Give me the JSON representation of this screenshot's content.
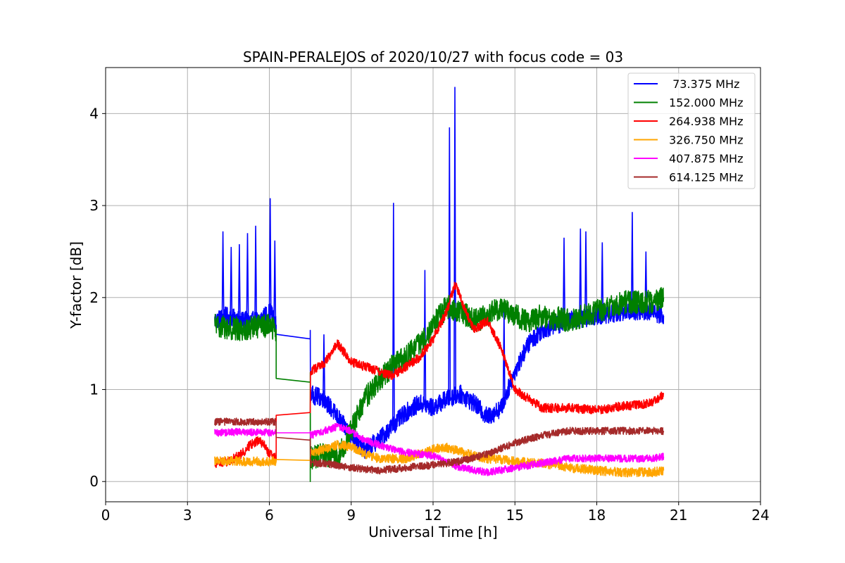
{
  "chart_data": {
    "type": "line",
    "title": "SPAIN-PERALEJOS of 2020/10/27 with focus code = 03",
    "xlabel": "Universal Time [h]",
    "ylabel": "Y-factor [dB]",
    "xlim": [
      0,
      24
    ],
    "ylim": [
      -0.22,
      4.5
    ],
    "xticks": [
      0,
      3,
      6,
      9,
      12,
      15,
      18,
      21,
      24
    ],
    "xtick_labels": [
      "0",
      "3",
      "6",
      "9",
      "12",
      "15",
      "18",
      "21",
      "24"
    ],
    "yticks": [
      0,
      1,
      2,
      3,
      4
    ],
    "ytick_labels": [
      "0",
      "1",
      "2",
      "3",
      "4"
    ],
    "grid": true,
    "legend_position": "top-right",
    "series": [
      {
        "name": " 73.375 MHz",
        "color": "#0000ff",
        "noise": 0.1,
        "points": [
          [
            4.0,
            1.75
          ],
          [
            4.4,
            1.8
          ],
          [
            5.0,
            1.75
          ],
          [
            5.6,
            1.75
          ],
          [
            6.05,
            1.85
          ],
          [
            6.25,
            1.7
          ],
          [
            6.25,
            1.6
          ],
          [
            7.5,
            1.55
          ],
          [
            7.5,
            0.95
          ],
          [
            8.0,
            0.9
          ],
          [
            8.5,
            0.7
          ],
          [
            9.0,
            0.5
          ],
          [
            9.5,
            0.35
          ],
          [
            10.0,
            0.45
          ],
          [
            10.5,
            0.6
          ],
          [
            11.0,
            0.75
          ],
          [
            11.5,
            0.85
          ],
          [
            12.0,
            0.8
          ],
          [
            12.5,
            0.9
          ],
          [
            13.0,
            0.95
          ],
          [
            13.5,
            0.85
          ],
          [
            14.0,
            0.7
          ],
          [
            14.5,
            0.8
          ],
          [
            15.0,
            1.2
          ],
          [
            15.5,
            1.5
          ],
          [
            16.0,
            1.65
          ],
          [
            17.0,
            1.75
          ],
          [
            18.0,
            1.8
          ],
          [
            19.0,
            1.85
          ],
          [
            20.0,
            1.85
          ],
          [
            20.45,
            1.8
          ]
        ],
        "spikes": [
          [
            4.3,
            2.72
          ],
          [
            4.6,
            2.55
          ],
          [
            4.9,
            2.58
          ],
          [
            5.2,
            2.7
          ],
          [
            5.5,
            2.78
          ],
          [
            6.03,
            3.08
          ],
          [
            6.2,
            2.62
          ],
          [
            8.0,
            1.6
          ],
          [
            10.55,
            3.03
          ],
          [
            11.7,
            2.3
          ],
          [
            12.6,
            3.85
          ],
          [
            12.8,
            4.29
          ],
          [
            14.6,
            1.9
          ],
          [
            16.8,
            2.65
          ],
          [
            17.4,
            2.75
          ],
          [
            17.6,
            2.72
          ],
          [
            18.2,
            2.6
          ],
          [
            19.3,
            2.93
          ],
          [
            19.8,
            2.5
          ]
        ]
      },
      {
        "name": "152.000 MHz",
        "color": "#008000",
        "noise": 0.13,
        "points": [
          [
            4.0,
            1.7
          ],
          [
            5.0,
            1.65
          ],
          [
            6.0,
            1.7
          ],
          [
            6.25,
            1.65
          ],
          [
            6.25,
            1.12
          ],
          [
            7.5,
            1.08
          ],
          [
            7.5,
            0.0
          ],
          [
            7.5,
            0.25
          ],
          [
            8.0,
            0.3
          ],
          [
            8.5,
            0.25
          ],
          [
            9.0,
            0.55
          ],
          [
            9.5,
            0.9
          ],
          [
            10.0,
            1.1
          ],
          [
            10.5,
            1.25
          ],
          [
            11.0,
            1.35
          ],
          [
            11.5,
            1.5
          ],
          [
            12.0,
            1.7
          ],
          [
            12.5,
            1.9
          ],
          [
            13.0,
            1.85
          ],
          [
            13.5,
            1.75
          ],
          [
            14.0,
            1.8
          ],
          [
            14.5,
            1.9
          ],
          [
            15.0,
            1.8
          ],
          [
            15.5,
            1.75
          ],
          [
            16.0,
            1.8
          ],
          [
            17.0,
            1.75
          ],
          [
            18.0,
            1.85
          ],
          [
            19.0,
            1.95
          ],
          [
            20.0,
            1.95
          ],
          [
            20.45,
            2.0
          ]
        ],
        "spikes": []
      },
      {
        "name": "264.938 MHz",
        "color": "#ff0000",
        "noise": 0.05,
        "points": [
          [
            4.0,
            0.2
          ],
          [
            4.5,
            0.22
          ],
          [
            5.0,
            0.3
          ],
          [
            5.3,
            0.4
          ],
          [
            5.6,
            0.45
          ],
          [
            5.8,
            0.4
          ],
          [
            6.0,
            0.3
          ],
          [
            6.25,
            0.25
          ],
          [
            6.25,
            0.72
          ],
          [
            7.5,
            0.75
          ],
          [
            7.5,
            1.2
          ],
          [
            8.0,
            1.28
          ],
          [
            8.5,
            1.5
          ],
          [
            9.0,
            1.3
          ],
          [
            9.5,
            1.25
          ],
          [
            10.0,
            1.2
          ],
          [
            10.5,
            1.15
          ],
          [
            11.0,
            1.25
          ],
          [
            11.5,
            1.35
          ],
          [
            12.0,
            1.55
          ],
          [
            12.5,
            1.85
          ],
          [
            12.8,
            2.15
          ],
          [
            13.2,
            1.85
          ],
          [
            13.5,
            1.65
          ],
          [
            14.0,
            1.75
          ],
          [
            14.5,
            1.45
          ],
          [
            15.0,
            1.0
          ],
          [
            15.5,
            0.9
          ],
          [
            16.0,
            0.8
          ],
          [
            17.0,
            0.8
          ],
          [
            18.0,
            0.78
          ],
          [
            19.0,
            0.82
          ],
          [
            20.0,
            0.85
          ],
          [
            20.45,
            0.95
          ]
        ],
        "spikes": []
      },
      {
        "name": "326.750 MHz",
        "color": "#ffa500",
        "noise": 0.05,
        "points": [
          [
            4.0,
            0.23
          ],
          [
            5.0,
            0.22
          ],
          [
            6.0,
            0.22
          ],
          [
            6.25,
            0.22
          ],
          [
            6.25,
            0.24
          ],
          [
            7.5,
            0.23
          ],
          [
            7.5,
            0.3
          ],
          [
            8.0,
            0.35
          ],
          [
            8.5,
            0.4
          ],
          [
            9.0,
            0.38
          ],
          [
            9.5,
            0.3
          ],
          [
            10.0,
            0.25
          ],
          [
            11.0,
            0.25
          ],
          [
            12.0,
            0.35
          ],
          [
            12.5,
            0.37
          ],
          [
            13.0,
            0.33
          ],
          [
            13.5,
            0.28
          ],
          [
            14.0,
            0.25
          ],
          [
            15.0,
            0.22
          ],
          [
            16.0,
            0.2
          ],
          [
            17.0,
            0.15
          ],
          [
            18.0,
            0.12
          ],
          [
            19.0,
            0.1
          ],
          [
            20.0,
            0.1
          ],
          [
            20.45,
            0.12
          ]
        ],
        "spikes": []
      },
      {
        "name": "407.875 MHz",
        "color": "#ff00ff",
        "noise": 0.04,
        "points": [
          [
            4.0,
            0.53
          ],
          [
            5.0,
            0.54
          ],
          [
            6.0,
            0.53
          ],
          [
            6.25,
            0.53
          ],
          [
            6.25,
            0.53
          ],
          [
            7.5,
            0.53
          ],
          [
            7.5,
            0.5
          ],
          [
            8.0,
            0.55
          ],
          [
            8.5,
            0.6
          ],
          [
            9.0,
            0.55
          ],
          [
            9.5,
            0.45
          ],
          [
            10.0,
            0.4
          ],
          [
            10.5,
            0.35
          ],
          [
            11.0,
            0.32
          ],
          [
            12.0,
            0.28
          ],
          [
            13.0,
            0.15
          ],
          [
            14.0,
            0.1
          ],
          [
            15.0,
            0.15
          ],
          [
            16.0,
            0.2
          ],
          [
            17.0,
            0.25
          ],
          [
            18.0,
            0.25
          ],
          [
            19.0,
            0.25
          ],
          [
            20.0,
            0.25
          ],
          [
            20.45,
            0.27
          ]
        ],
        "spikes": []
      },
      {
        "name": "614.125 MHz",
        "color": "#a52a2a",
        "noise": 0.04,
        "points": [
          [
            4.0,
            0.65
          ],
          [
            5.0,
            0.65
          ],
          [
            6.0,
            0.65
          ],
          [
            6.25,
            0.65
          ],
          [
            6.25,
            0.48
          ],
          [
            7.5,
            0.45
          ],
          [
            7.5,
            0.2
          ],
          [
            8.0,
            0.2
          ],
          [
            9.0,
            0.15
          ],
          [
            10.0,
            0.12
          ],
          [
            11.0,
            0.15
          ],
          [
            12.0,
            0.18
          ],
          [
            13.0,
            0.22
          ],
          [
            14.0,
            0.3
          ],
          [
            15.0,
            0.42
          ],
          [
            16.0,
            0.5
          ],
          [
            17.0,
            0.55
          ],
          [
            18.0,
            0.55
          ],
          [
            19.0,
            0.55
          ],
          [
            20.0,
            0.55
          ],
          [
            20.45,
            0.55
          ]
        ],
        "spikes": []
      }
    ]
  }
}
